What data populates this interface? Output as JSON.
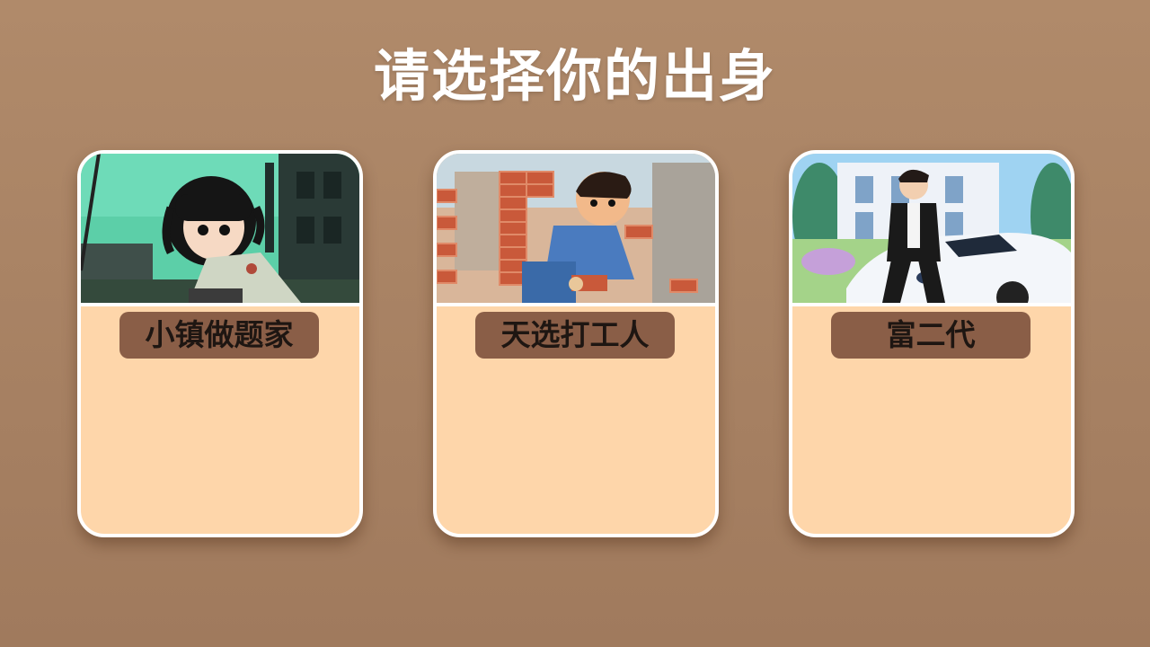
{
  "page": {
    "title": "请选择你的出身"
  },
  "colors": {
    "background": "#a9836a",
    "card_body": "#fed6aa",
    "label_bg": "#8a5e47",
    "label_text": "#1e1612",
    "border": "#ffffff"
  },
  "cards": [
    {
      "label": "小镇做题家",
      "illustration": "girl-sitting-in-ruins-illustration"
    },
    {
      "label": "天选打工人",
      "illustration": "boy-carrying-bricks-illustration"
    },
    {
      "label": "富二代",
      "illustration": "young-man-with-sports-car-illustration"
    }
  ]
}
